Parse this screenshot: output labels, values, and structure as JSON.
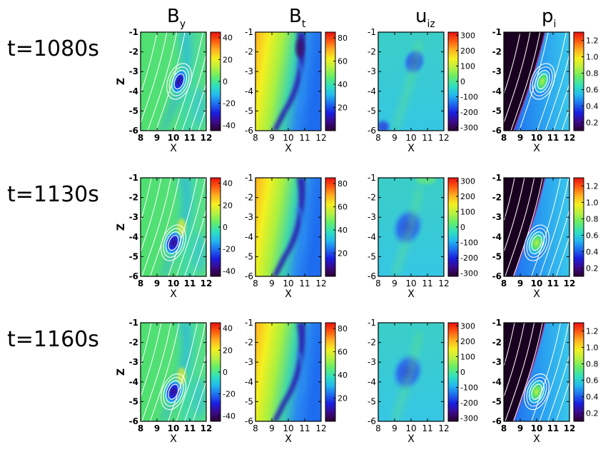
{
  "columns": [
    {
      "base": "B",
      "sub": "y"
    },
    {
      "base": "B",
      "sub": "t"
    },
    {
      "base": "u",
      "sub": "iz"
    },
    {
      "base": "p",
      "sub": "i"
    }
  ],
  "rows": [
    {
      "label": "t=1080s"
    },
    {
      "label": "t=1130s"
    },
    {
      "label": "t=1160s"
    }
  ],
  "chart_data": {
    "type": "heatmap",
    "x": {
      "label": "X",
      "range": [
        8,
        12
      ],
      "ticks": [
        "8",
        "9",
        "10",
        "11",
        "12"
      ]
    },
    "z": {
      "label": "Z",
      "range": [
        -6,
        -1
      ],
      "ticks": [
        "-1",
        "-2",
        "-3",
        "-4",
        "-5",
        "-6"
      ]
    },
    "panels": [
      {
        "quantity": "By",
        "colorbar": {
          "ticks": [
            "40",
            "20",
            "0",
            "-20",
            "-40"
          ],
          "range": [
            -45,
            45
          ]
        },
        "field_lines": true
      },
      {
        "quantity": "Bt",
        "colorbar": {
          "ticks": [
            "80",
            "60",
            "40",
            "20"
          ],
          "range": [
            0,
            85
          ]
        },
        "field_lines": false
      },
      {
        "quantity": "uiz",
        "colorbar": {
          "ticks": [
            "300",
            "200",
            "100",
            "0",
            "-100",
            "-200",
            "-300"
          ],
          "range": [
            -320,
            320
          ]
        },
        "field_lines": false
      },
      {
        "quantity": "pi",
        "colorbar": {
          "ticks": [
            "1.2",
            "1.0",
            "0.8",
            "0.6",
            "0.4",
            "0.2"
          ],
          "range": [
            0.1,
            1.3
          ]
        },
        "field_lines": true
      }
    ],
    "colormap": [
      "#2a0030",
      "#3b0a8a",
      "#1a1ee0",
      "#1e6cf0",
      "#22b8f0",
      "#2ee0c0",
      "#66ee66",
      "#b8f040",
      "#f4f020",
      "#ffb020",
      "#ff5a10",
      "#e81010"
    ]
  }
}
